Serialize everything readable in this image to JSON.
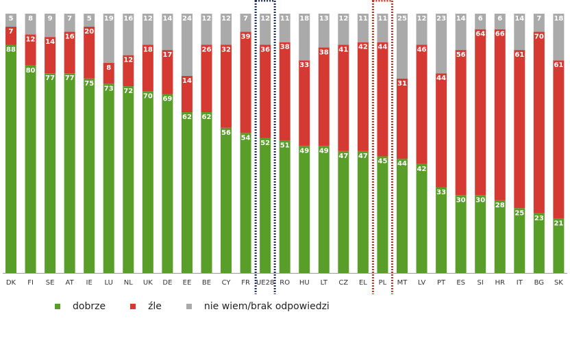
{
  "chart_data": {
    "type": "bar",
    "stacked": true,
    "ylim": [
      0,
      100
    ],
    "grid": false,
    "legend_position": "bottom-left",
    "categories": [
      "DK",
      "FI",
      "SE",
      "AT",
      "IE",
      "LU",
      "NL",
      "UK",
      "DE",
      "EE",
      "BE",
      "CY",
      "FR",
      "UE28",
      "RO",
      "HU",
      "LT",
      "CZ",
      "EL",
      "PL",
      "MT",
      "LV",
      "PT",
      "ES",
      "SI",
      "HR",
      "IT",
      "BG",
      "SK"
    ],
    "highlighted": [
      {
        "category": "UE28",
        "color": "#1f2f5c"
      },
      {
        "category": "PL",
        "color": "#c0392b"
      }
    ],
    "series": [
      {
        "name": "dobrze",
        "color": "#5a9e2a",
        "values": [
          88,
          80,
          77,
          77,
          75,
          73,
          72,
          70,
          69,
          62,
          62,
          56,
          54,
          52,
          51,
          49,
          49,
          47,
          47,
          45,
          44,
          42,
          33,
          30,
          30,
          28,
          25,
          23,
          21
        ]
      },
      {
        "name": "źle",
        "color": "#d43a32",
        "values": [
          7,
          12,
          14,
          16,
          20,
          8,
          12,
          18,
          17,
          14,
          26,
          32,
          39,
          36,
          38,
          33,
          38,
          41,
          42,
          44,
          31,
          46,
          44,
          56,
          64,
          66,
          61,
          70,
          61
        ]
      },
      {
        "name": "nie wiem/brak odpowiedzi",
        "color": "#aaaaaa",
        "values": [
          5,
          8,
          9,
          7,
          5,
          19,
          16,
          12,
          14,
          24,
          12,
          12,
          7,
          12,
          11,
          18,
          13,
          12,
          11,
          11,
          25,
          12,
          23,
          14,
          6,
          6,
          14,
          7,
          18
        ]
      }
    ],
    "flags": [
      "flag-dk",
      "flag-fi",
      "flag-se",
      "flag-at",
      "flag-ie",
      "flag-lu",
      "flag-nl",
      "flag-uk",
      "flag-de",
      "flag-ee",
      "flag-be",
      "flag-cy",
      "flag-fr",
      "flag-eu",
      "flag-ro",
      "flag-hu",
      "flag-lt",
      "flag-cz",
      "flag-el",
      "flag-pl",
      "flag-mt",
      "flag-lv",
      "flag-pt",
      "flag-es",
      "flag-si",
      "flag-hr",
      "flag-it",
      "flag-bg",
      "flag-sk"
    ]
  },
  "legend": {
    "items": [
      {
        "label": "dobrze",
        "color": "#5a9e2a"
      },
      {
        "label": "źle",
        "color": "#d43a32"
      },
      {
        "label": "nie wiem/brak odpowiedzi",
        "color": "#aaaaaa"
      }
    ]
  }
}
